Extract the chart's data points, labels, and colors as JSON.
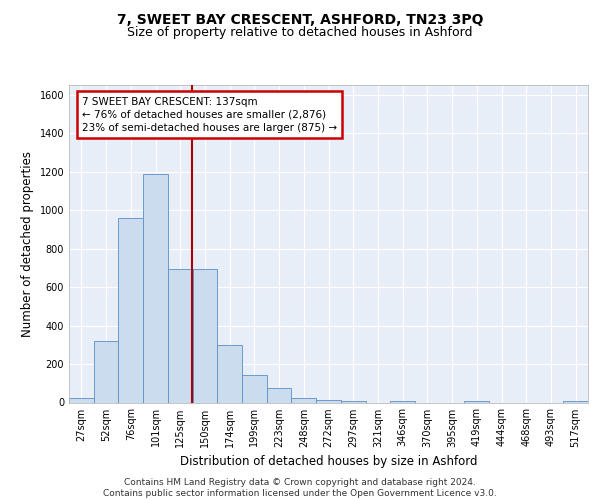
{
  "title1": "7, SWEET BAY CRESCENT, ASHFORD, TN23 3PQ",
  "title2": "Size of property relative to detached houses in Ashford",
  "xlabel": "Distribution of detached houses by size in Ashford",
  "ylabel": "Number of detached properties",
  "footnote1": "Contains HM Land Registry data © Crown copyright and database right 2024.",
  "footnote2": "Contains public sector information licensed under the Open Government Licence v3.0.",
  "annotation_line1": "7 SWEET BAY CRESCENT: 137sqm",
  "annotation_line2": "← 76% of detached houses are smaller (2,876)",
  "annotation_line3": "23% of semi-detached houses are larger (875) →",
  "bin_labels": [
    "27sqm",
    "52sqm",
    "76sqm",
    "101sqm",
    "125sqm",
    "150sqm",
    "174sqm",
    "199sqm",
    "223sqm",
    "248sqm",
    "272sqm",
    "297sqm",
    "321sqm",
    "346sqm",
    "370sqm",
    "395sqm",
    "419sqm",
    "444sqm",
    "468sqm",
    "493sqm",
    "517sqm"
  ],
  "bar_heights": [
    25,
    320,
    960,
    1190,
    695,
    695,
    300,
    145,
    75,
    25,
    15,
    10,
    0,
    10,
    0,
    0,
    10,
    0,
    0,
    0,
    10
  ],
  "bar_color": "#ccdcef",
  "bar_edge_color": "#5b8fc9",
  "vline_color": "#aa0000",
  "ylim": [
    0,
    1650
  ],
  "yticks": [
    0,
    200,
    400,
    600,
    800,
    1000,
    1200,
    1400,
    1600
  ],
  "bg_color": "#e8eef8",
  "grid_color": "#ffffff",
  "title1_fontsize": 10,
  "title2_fontsize": 9,
  "axis_label_fontsize": 8.5,
  "tick_fontsize": 7,
  "footnote_fontsize": 6.5,
  "annotation_fontsize": 7.5
}
